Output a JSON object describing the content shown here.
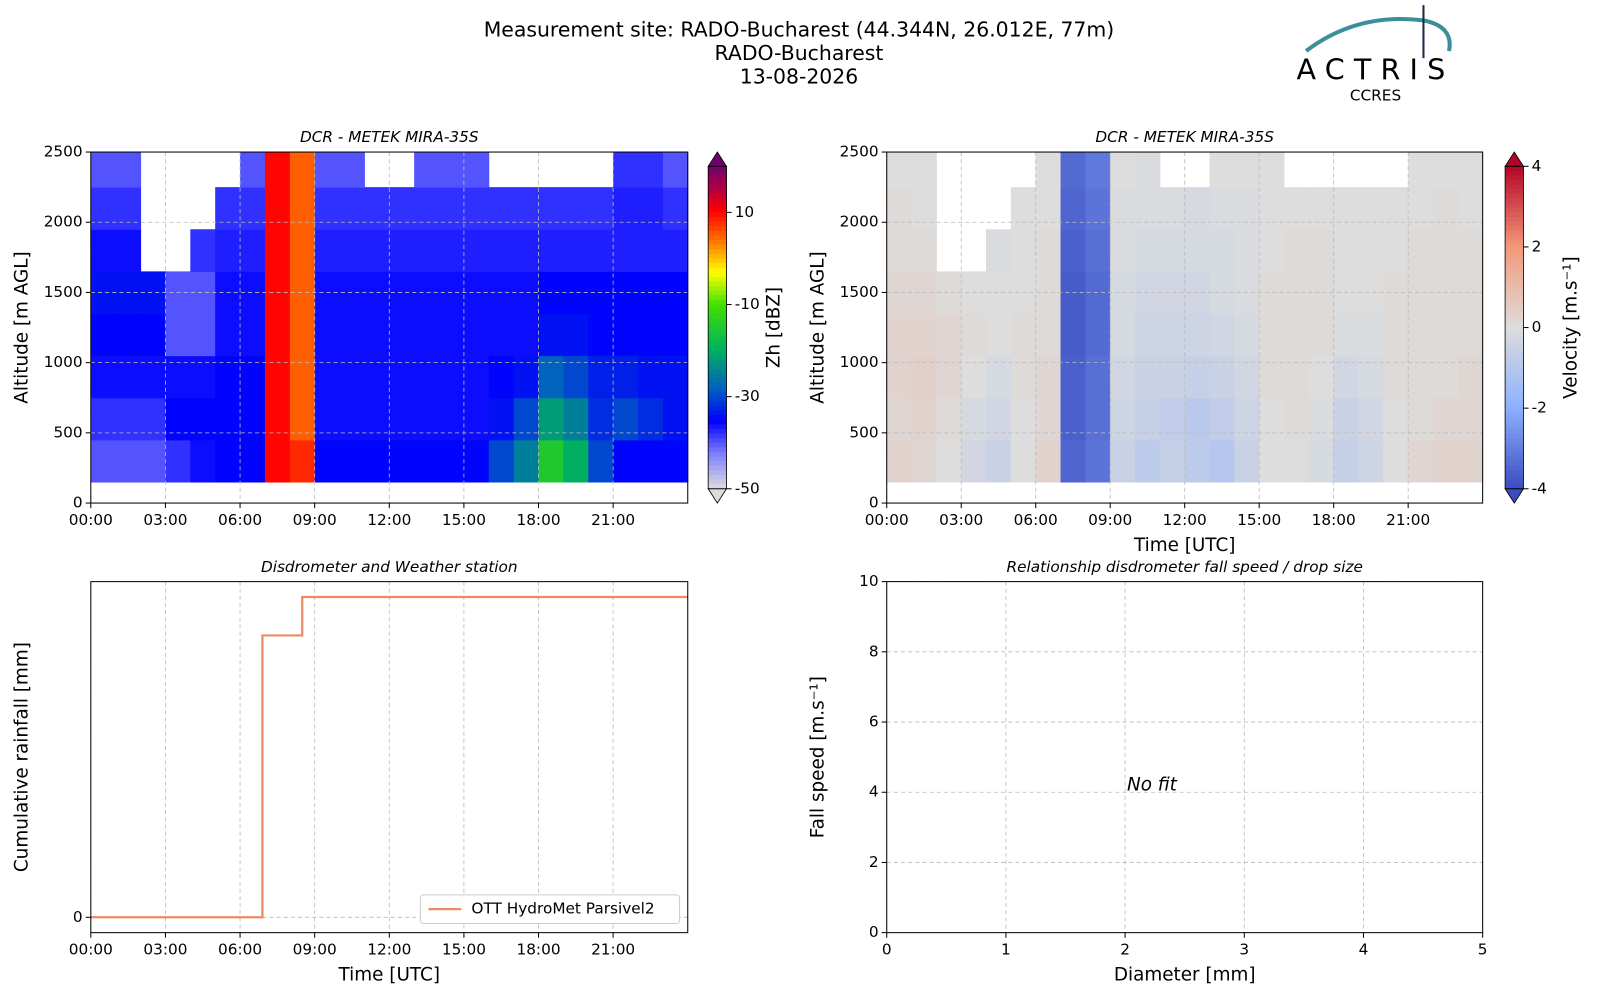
{
  "header": {
    "title": "Measurement site: RADO-Bucharest (44.344N, 26.012E, 77m)",
    "subtitle": "RADO-Bucharest",
    "date": "13-08-2026"
  },
  "logo": {
    "name": "ACTRIS",
    "subtitle": "CCRES"
  },
  "chart_data": [
    {
      "type": "heatmap",
      "title": "DCR - METEK MIRA-35S",
      "ylabel": "Altitude [m AGL]",
      "xbins": [
        0,
        1,
        2,
        3,
        4,
        5,
        6,
        7,
        8,
        9,
        10,
        11,
        12,
        13,
        14,
        15,
        16,
        17,
        18,
        19,
        20,
        21,
        22,
        23,
        24
      ],
      "ybins": [
        150,
        450,
        750,
        1050,
        1350,
        1650,
        1950,
        2250,
        2500
      ],
      "z": [
        [
          -40,
          -40,
          -40,
          -38,
          -36,
          -35,
          -35,
          10,
          8,
          -35,
          -35,
          -35,
          -35,
          -35,
          -35,
          -35,
          -30,
          -25,
          -15,
          -20,
          -30,
          -35,
          -35,
          -35
        ],
        [
          -38,
          -38,
          -38,
          -35,
          -35,
          -35,
          -35,
          10,
          5,
          -36,
          -36,
          -36,
          -36,
          -36,
          -36,
          -36,
          -34,
          -30,
          -22,
          -25,
          -32,
          -30,
          -32,
          -34
        ],
        [
          -36,
          -36,
          -36,
          -36,
          -36,
          -35,
          -35,
          10,
          5,
          -36,
          -36,
          -36,
          -36,
          -36,
          -36,
          -36,
          -35,
          -34,
          -28,
          -30,
          -33,
          -33,
          -34,
          -34
        ],
        [
          -35,
          -35,
          -35,
          -40,
          -40,
          -36,
          -36,
          10,
          5,
          -36,
          -36,
          -36,
          -36,
          -36,
          -36,
          -36,
          -36,
          -36,
          -34,
          -34,
          -35,
          -35,
          -35,
          -35
        ],
        [
          -34,
          -34,
          -34,
          -40,
          -40,
          -36,
          -36,
          10,
          5,
          -36,
          -36,
          -36,
          -36,
          -36,
          -36,
          -36,
          -36,
          -36,
          -35,
          -35,
          -35,
          -35,
          -35,
          -35
        ],
        [
          -36,
          -36,
          null,
          null,
          -38,
          -37,
          -37,
          10,
          5,
          -37,
          -37,
          -37,
          -37,
          -37,
          -37,
          -37,
          -37,
          -37,
          -37,
          -37,
          -37,
          -37,
          -37,
          -37
        ],
        [
          -38,
          -38,
          null,
          null,
          null,
          -38,
          -38,
          10,
          5,
          -38,
          -38,
          -38,
          -38,
          -38,
          -38,
          -38,
          -38,
          -38,
          -38,
          -38,
          -38,
          -37,
          -37,
          -38
        ],
        [
          -40,
          -40,
          null,
          null,
          null,
          null,
          -40,
          10,
          5,
          -40,
          -40,
          null,
          null,
          -40,
          -40,
          -40,
          null,
          null,
          null,
          null,
          null,
          -38,
          -38,
          -40
        ]
      ],
      "colormap": "rainbow",
      "clim": [
        -50,
        20
      ],
      "cbticks": [
        -50,
        -30,
        -10,
        10
      ],
      "cblabel": "Zh [dBZ]",
      "xlim": [
        0,
        24
      ],
      "xticks": [
        {
          "value": 0,
          "label": "00:00"
        },
        {
          "value": 3,
          "label": "03:00"
        },
        {
          "value": 6,
          "label": "06:00"
        },
        {
          "value": 9,
          "label": "09:00"
        },
        {
          "value": 12,
          "label": "12:00"
        },
        {
          "value": 15,
          "label": "15:00"
        },
        {
          "value": 18,
          "label": "18:00"
        },
        {
          "value": 21,
          "label": "21:00"
        }
      ],
      "ylim": [
        0,
        2500
      ],
      "yticks": [
        0,
        500,
        1000,
        1500,
        2000,
        2500
      ],
      "grid": true
    },
    {
      "type": "heatmap",
      "title": "DCR - METEK MIRA-35S",
      "xlabel": "Time [UTC]",
      "ylabel": "Altitude [m AGL]",
      "xbins": [
        0,
        1,
        2,
        3,
        4,
        5,
        6,
        7,
        8,
        9,
        10,
        11,
        12,
        13,
        14,
        15,
        16,
        17,
        18,
        19,
        20,
        21,
        22,
        23,
        24
      ],
      "ybins": [
        150,
        450,
        750,
        1050,
        1350,
        1650,
        1950,
        2250,
        2500
      ],
      "z": [
        [
          0.3,
          0.2,
          0,
          -0.3,
          -0.5,
          0,
          0.3,
          -3.5,
          -3.2,
          -0.5,
          -0.8,
          -0.6,
          -0.8,
          -1,
          -0.5,
          0,
          0,
          -0.2,
          -0.6,
          -0.4,
          0,
          0.2,
          0.3,
          0.3
        ],
        [
          0.2,
          0.3,
          0.1,
          -0.2,
          -0.3,
          0,
          0.2,
          -3.6,
          -3.3,
          -0.4,
          -0.6,
          -0.7,
          -0.9,
          -0.7,
          -0.4,
          0,
          0.1,
          -0.1,
          -0.5,
          -0.3,
          0,
          0.1,
          0.2,
          0.2
        ],
        [
          0.3,
          0.4,
          0.2,
          0,
          -0.2,
          0.1,
          0.2,
          -3.6,
          -3.3,
          -0.3,
          -0.5,
          -0.5,
          -0.6,
          -0.5,
          -0.3,
          0.1,
          0.1,
          0,
          -0.3,
          -0.2,
          0.1,
          0.1,
          0.1,
          0.2
        ],
        [
          0.3,
          0.3,
          0.2,
          0.1,
          0,
          0.1,
          0.1,
          -3.7,
          -3.4,
          -0.2,
          -0.4,
          -0.4,
          -0.4,
          -0.3,
          -0.2,
          0.1,
          0.1,
          0.1,
          -0.1,
          -0.1,
          0.1,
          0.1,
          0.1,
          0.1
        ],
        [
          0.2,
          0.2,
          0.1,
          0,
          0,
          0,
          0.1,
          -3.7,
          -3.4,
          -0.2,
          -0.3,
          -0.3,
          -0.3,
          -0.2,
          -0.1,
          0.1,
          0.1,
          0.1,
          0,
          0,
          0.1,
          0.1,
          0.1,
          0.1
        ],
        [
          0.1,
          0.1,
          null,
          null,
          -0.1,
          0,
          0.1,
          -3.6,
          -3.3,
          -0.1,
          -0.2,
          -0.2,
          -0.2,
          -0.2,
          -0.1,
          0,
          0.1,
          0.1,
          0,
          0,
          0,
          0.1,
          0.1,
          0.1
        ],
        [
          0.1,
          0,
          null,
          null,
          null,
          0,
          0,
          -3.5,
          -3.2,
          -0.1,
          -0.1,
          -0.1,
          -0.2,
          -0.1,
          -0.1,
          0,
          0,
          0,
          0,
          0,
          0,
          0,
          0.1,
          0
        ],
        [
          0,
          0,
          null,
          null,
          null,
          null,
          0,
          -3.4,
          -3.1,
          0,
          -0.1,
          null,
          null,
          0,
          0,
          0,
          null,
          null,
          null,
          null,
          null,
          0,
          0,
          0
        ]
      ],
      "colormap": "coolwarm",
      "clim": [
        -4,
        4
      ],
      "cbticks": [
        -4,
        -2,
        0,
        2,
        4
      ],
      "cblabel": "Velocity [m.s⁻¹]",
      "xlim": [
        0,
        24
      ],
      "xticks": [
        {
          "value": 0,
          "label": "00:00"
        },
        {
          "value": 3,
          "label": "03:00"
        },
        {
          "value": 6,
          "label": "06:00"
        },
        {
          "value": 9,
          "label": "09:00"
        },
        {
          "value": 12,
          "label": "12:00"
        },
        {
          "value": 15,
          "label": "15:00"
        },
        {
          "value": 18,
          "label": "18:00"
        },
        {
          "value": 21,
          "label": "21:00"
        }
      ],
      "ylim": [
        0,
        2500
      ],
      "yticks": [
        0,
        500,
        1000,
        1500,
        2000,
        2500
      ],
      "grid": true
    },
    {
      "type": "line",
      "title": "Disdrometer and Weather station",
      "xlabel": "Time [UTC]",
      "ylabel": "Cumulative rainfall [mm]",
      "series": [
        {
          "name": "OTT HydroMet Parsivel2",
          "color": "#ec8a63",
          "x": [
            0,
            6.9,
            6.9,
            8.5,
            8.5,
            24
          ],
          "values": [
            0,
            0,
            8.8,
            8.8,
            10,
            10
          ]
        }
      ],
      "legend": "lower right",
      "xlim": [
        0,
        24
      ],
      "xticks": [
        {
          "value": 0,
          "label": "00:00"
        },
        {
          "value": 3,
          "label": "03:00"
        },
        {
          "value": 6,
          "label": "06:00"
        },
        {
          "value": 9,
          "label": "09:00"
        },
        {
          "value": 12,
          "label": "12:00"
        },
        {
          "value": 15,
          "label": "15:00"
        },
        {
          "value": 18,
          "label": "18:00"
        },
        {
          "value": 21,
          "label": "21:00"
        }
      ],
      "ylim": [
        -0.48,
        10.48
      ],
      "yticks": [
        0
      ],
      "grid": true
    },
    {
      "type": "scatter",
      "title": "Relationship disdrometer fall speed / drop size",
      "xlabel": "Diameter [mm]",
      "ylabel": "Fall speed [m.s⁻¹]",
      "annotation": "No fit",
      "xlim": [
        0,
        5
      ],
      "xticks": [
        0,
        1,
        2,
        3,
        4,
        5
      ],
      "ylim": [
        0,
        10
      ],
      "yticks": [
        0,
        2,
        4,
        6,
        8,
        10
      ],
      "grid": true
    }
  ]
}
